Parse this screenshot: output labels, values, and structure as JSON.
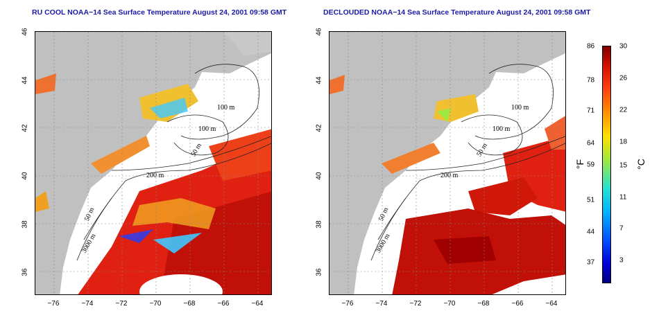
{
  "panels": [
    {
      "title": "RU COOL NOAA−14 Sea Surface Temperature August 24, 2001 09:58 GMT"
    },
    {
      "title": "DECLOUDED NOAA−14 Sea Surface Temperature August 24, 2001 09:58 GMT"
    }
  ],
  "map": {
    "x_ticks": [
      "−76",
      "−74",
      "−72",
      "−70",
      "−68",
      "−66",
      "−64"
    ],
    "y_ticks": [
      "46",
      "44",
      "42",
      "40",
      "38",
      "36"
    ],
    "contour_labels": [
      "100 m",
      "100 m",
      "50 m",
      "200 m",
      "50 m",
      "3000 m"
    ]
  },
  "colorbar": {
    "f_ticks": [
      "86",
      "78",
      "71",
      "64",
      "59",
      "51",
      "44",
      "37"
    ],
    "c_ticks": [
      "30",
      "26",
      "22",
      "18",
      "15",
      "11",
      "7",
      "3"
    ],
    "f_label": "°F",
    "c_label": "°C"
  },
  "colors": {
    "land": "#c0c0c0",
    "water_warm": "#e02010",
    "water_hot": "#b00000",
    "water_mid": "#f07030",
    "water_cool": "#ffc020",
    "cold": "#40c8ff",
    "title": "#1a1aa8"
  }
}
